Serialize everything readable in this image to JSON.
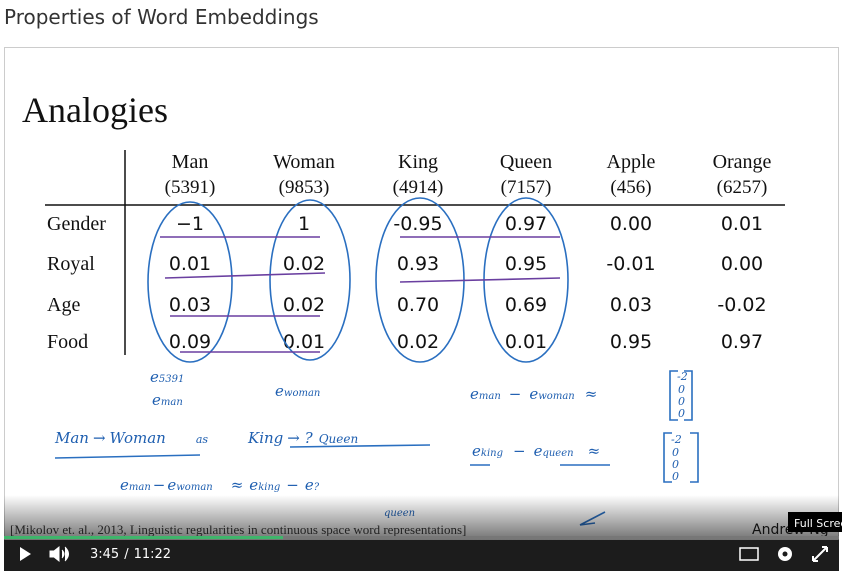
{
  "page_title": "Properties of Word Embeddings",
  "slide": {
    "title": "Analogies",
    "table": {
      "columns": [
        {
          "word": "Man",
          "index": "(5391)"
        },
        {
          "word": "Woman",
          "index": "(9853)"
        },
        {
          "word": "King",
          "index": "(4914)"
        },
        {
          "word": "Queen",
          "index": "(7157)"
        },
        {
          "word": "Apple",
          "index": "(456)"
        },
        {
          "word": "Orange",
          "index": "(6257)"
        }
      ],
      "rows": [
        {
          "label": "Gender",
          "values": [
            "−1",
            "1",
            "-0.95",
            "0.97",
            "0.00",
            "0.01"
          ]
        },
        {
          "label": "Royal",
          "values": [
            "0.01",
            "0.02",
            "0.93",
            "0.95",
            "-0.01",
            "0.00"
          ]
        },
        {
          "label": "Age",
          "values": [
            "0.03",
            "0.02",
            "0.70",
            "0.69",
            "0.03",
            "-0.02"
          ]
        },
        {
          "label": "Food",
          "values": [
            "0.09",
            "0.01",
            "0.02",
            "0.01",
            "0.95",
            "0.97"
          ]
        }
      ]
    },
    "notes": {
      "n1": [
        "e",
        "5391"
      ],
      "n2": [
        "e",
        "man"
      ],
      "n3": [
        "e",
        "woman"
      ],
      "n4": [
        "e",
        "man",
        "−",
        "e",
        "woman",
        "≈"
      ],
      "v1": [
        "-2",
        "0",
        "0",
        "0"
      ],
      "n5": [
        "Man",
        "→",
        "Woman",
        "as",
        "King",
        "→ ?",
        "Queen"
      ],
      "n6": [
        "e",
        "king",
        "−",
        "e",
        "queen",
        "≈"
      ],
      "v2": [
        "-2",
        "0",
        "0",
        "0"
      ],
      "n7": [
        "e",
        "man",
        "−",
        "e",
        "woman",
        "≈",
        "e",
        "king",
        "−",
        "e",
        "?"
      ],
      "n8": [
        "queen"
      ]
    },
    "citation": "[Mikolov et. al., 2013, Linguistic regularities in continuous space word representations]",
    "author": "Andrew Ng"
  },
  "player": {
    "current_time": "3:45",
    "separator": "/",
    "duration": "11:22",
    "tooltip": "Full Screen"
  }
}
